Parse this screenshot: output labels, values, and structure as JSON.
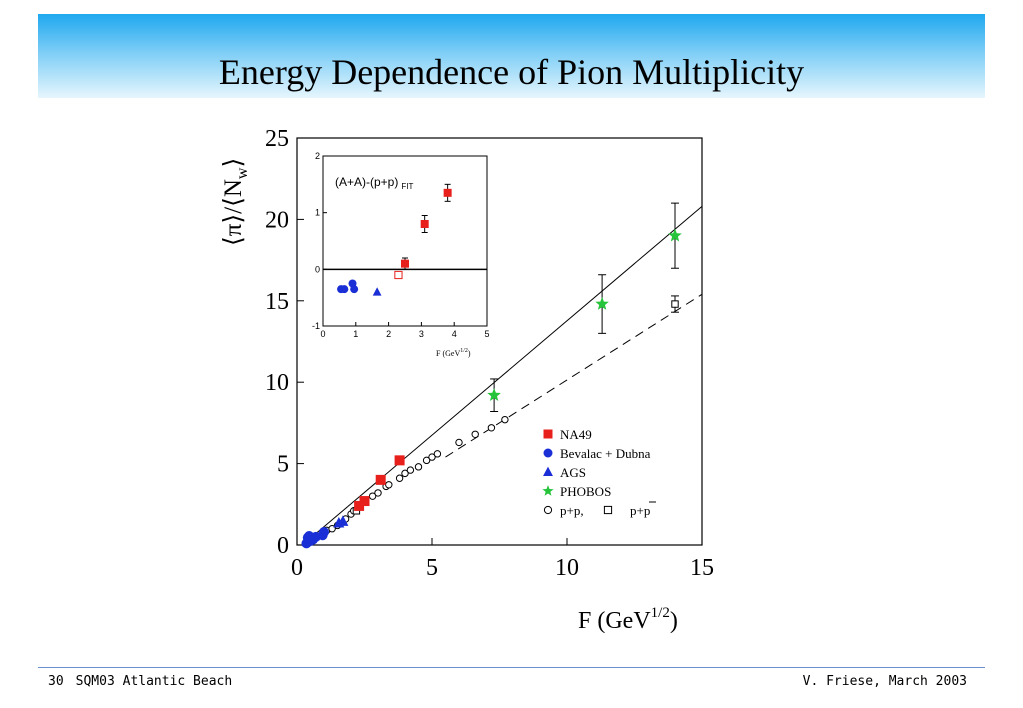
{
  "slide": {
    "title": "Energy Dependence of Pion Multiplicity",
    "slide_number": "30",
    "footer_left": "SQM03 Atlantic Beach",
    "footer_right": "V. Friese, March 2003"
  },
  "chart_data": [
    {
      "type": "scatter",
      "ylabel": "⟨π⟩/⟨N",
      "ylabel_sub": "w",
      "ylabel_end": "⟩",
      "xlabel": "F (GeV",
      "xlabel_sup": "1/2",
      "xlabel_end": ")",
      "xlim": [
        0,
        15
      ],
      "ylim": [
        0,
        25
      ],
      "x_ticks": [
        "0",
        "5",
        "10",
        "15"
      ],
      "y_ticks": [
        "0",
        "5",
        "10",
        "15",
        "20",
        "25"
      ],
      "legend_position": "bottom-right",
      "legend": [
        {
          "label": "NA49",
          "marker": "square",
          "color": "#e8201c"
        },
        {
          "label": "Bevalac + Dubna",
          "marker": "circle",
          "color": "#1a2fd6"
        },
        {
          "label": "AGS",
          "marker": "triangle",
          "color": "#1a2fd6"
        },
        {
          "label": "PHOBOS",
          "marker": "star",
          "color": "#26c43a"
        },
        {
          "label": "p+p,",
          "marker": "open-circle",
          "color": "#000000"
        },
        {
          "label": "p+p",
          "marker": "open-square",
          "color": "#000000"
        }
      ],
      "series": [
        {
          "name": "NA49",
          "points": [
            [
              2.3,
              2.4
            ],
            [
              2.5,
              2.7
            ],
            [
              3.1,
              4.0
            ],
            [
              3.8,
              5.2
            ]
          ]
        },
        {
          "name": "Bevalac + Dubna",
          "points": [
            [
              0.35,
              0.1
            ],
            [
              0.42,
              0.2
            ],
            [
              0.5,
              0.25
            ],
            [
              0.55,
              0.3
            ],
            [
              0.6,
              0.35
            ],
            [
              0.7,
              0.5
            ],
            [
              0.95,
              0.6
            ],
            [
              1.0,
              0.8
            ],
            [
              0.4,
              0.45
            ],
            [
              0.45,
              0.55
            ]
          ]
        },
        {
          "name": "AGS",
          "points": [
            [
              1.55,
              1.35
            ],
            [
              1.7,
              1.45
            ]
          ]
        },
        {
          "name": "PHOBOS",
          "points": [
            [
              7.3,
              9.2
            ],
            [
              11.3,
              14.8
            ],
            [
              14.0,
              19.0
            ]
          ],
          "errors": [
            1.0,
            1.8,
            2.0
          ]
        },
        {
          "name": "p+p,",
          "points": [
            [
              1.1,
              0.9
            ],
            [
              1.3,
              1.0
            ],
            [
              1.5,
              1.2
            ],
            [
              1.8,
              1.6
            ],
            [
              2.0,
              1.9
            ],
            [
              2.1,
              2.1
            ],
            [
              2.8,
              3.0
            ],
            [
              3.0,
              3.2
            ],
            [
              3.3,
              3.6
            ],
            [
              3.4,
              3.7
            ],
            [
              3.8,
              4.1
            ],
            [
              4.0,
              4.4
            ],
            [
              4.2,
              4.6
            ],
            [
              4.5,
              4.8
            ],
            [
              4.8,
              5.2
            ],
            [
              5.0,
              5.4
            ],
            [
              5.2,
              5.6
            ],
            [
              6.0,
              6.3
            ],
            [
              6.6,
              6.8
            ],
            [
              7.2,
              7.2
            ],
            [
              7.7,
              7.7
            ]
          ]
        },
        {
          "name": "p+p",
          "points": [
            [
              2.2,
              2.1
            ],
            [
              14.0,
              14.8
            ]
          ],
          "errors": [
            0,
            0.5
          ]
        }
      ],
      "fits": [
        {
          "style": "solid",
          "from": [
            0.2,
            0.0
          ],
          "to": [
            15.0,
            20.8
          ]
        },
        {
          "style": "dashed",
          "from": [
            5.5,
            5.4
          ],
          "to": [
            15.0,
            15.4
          ]
        }
      ]
    },
    {
      "type": "scatter",
      "title": "(A+A)-(p+p)",
      "title_sub": "FIT",
      "xlabel": "F (GeV",
      "xlabel_sup": "1/2",
      "xlabel_end": ")",
      "xlim": [
        0,
        5
      ],
      "ylim": [
        -1,
        2
      ],
      "x_ticks": [
        "0",
        "1",
        "2",
        "3",
        "4",
        "5"
      ],
      "y_ticks": [
        "-1",
        "0",
        "1",
        "2"
      ],
      "reference_line": 0,
      "series": [
        {
          "name": "NA49",
          "points": [
            [
              2.5,
              0.1
            ],
            [
              3.1,
              0.8
            ],
            [
              3.8,
              1.35
            ]
          ],
          "errors": [
            0.1,
            0.15,
            0.15
          ]
        },
        {
          "name": "Bevalac + Dubna",
          "points": [
            [
              0.55,
              -0.35
            ],
            [
              0.65,
              -0.35
            ],
            [
              0.9,
              -0.25
            ],
            [
              0.95,
              -0.35
            ]
          ]
        },
        {
          "name": "AGS",
          "points": [
            [
              1.65,
              -0.4
            ]
          ]
        },
        {
          "name": "p+p",
          "points": [
            [
              2.3,
              -0.1
            ]
          ]
        }
      ]
    }
  ]
}
